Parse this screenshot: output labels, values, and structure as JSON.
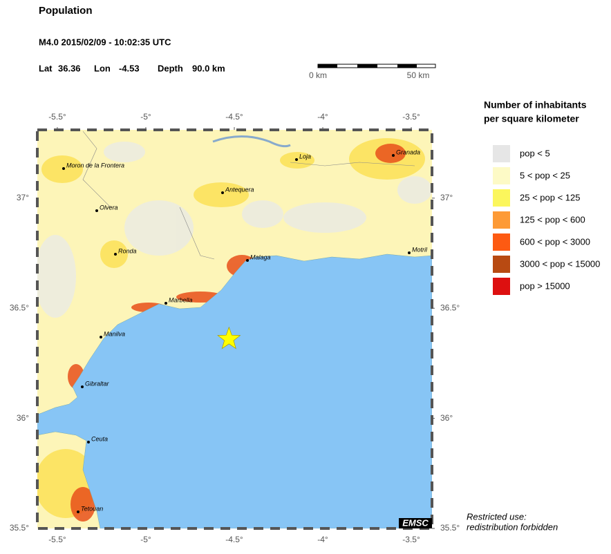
{
  "header": {
    "title": "Population",
    "event": "M4.0  2015/02/09 - 10:02:35 UTC",
    "lat_label": "Lat",
    "lat": 36.36,
    "lon_label": "Lon",
    "lon": -4.53,
    "depth_label": "Depth",
    "depth": "90.0 km"
  },
  "scale_bar": {
    "start": "0 km",
    "end": "50 km"
  },
  "map": {
    "xlim": [
      -5.613,
      -3.383
    ],
    "ylim": [
      35.5,
      37.31
    ],
    "xticks": [
      {
        "value": -5.5,
        "label": "-5.5°"
      },
      {
        "value": -5,
        "label": "-5°"
      },
      {
        "value": -4.5,
        "label": "-4.5°"
      },
      {
        "value": -4,
        "label": "-4°"
      },
      {
        "value": -3.5,
        "label": "-3.5°"
      }
    ],
    "yticks": [
      {
        "value": 35.5,
        "label": "35.5°"
      },
      {
        "value": 36,
        "label": "36°"
      },
      {
        "value": 36.5,
        "label": "36.5°"
      },
      {
        "value": 37,
        "label": "37°"
      }
    ],
    "cities": [
      "Moron de la Frontera",
      "Olvera",
      "Ronda",
      "Antequera",
      "Loja",
      "Granada",
      "Malaga",
      "Motril",
      "Marbella",
      "Manilva",
      "Gibraltar",
      "Ceuta",
      "Tetouan"
    ],
    "badge": "EMSC"
  },
  "legend": {
    "title": [
      "Number of inhabitants",
      "per square kilometer"
    ],
    "items": [
      {
        "label": "pop < 5",
        "color": "#e6e6e6"
      },
      {
        "label": "5 < pop < 25",
        "color": "#fdfac6"
      },
      {
        "label": "25 < pop < 125",
        "color": "#fbf65c"
      },
      {
        "label": "125 < pop < 600",
        "color": "#fd9a36"
      },
      {
        "label": "600 < pop < 3000",
        "color": "#fd5a12"
      },
      {
        "label": "3000 < pop < 15000",
        "color": "#b84a12"
      },
      {
        "label": "pop > 15000",
        "color": "#dd1010"
      }
    ]
  },
  "notice": [
    "Restricted use:",
    "redistribution forbidden"
  ]
}
